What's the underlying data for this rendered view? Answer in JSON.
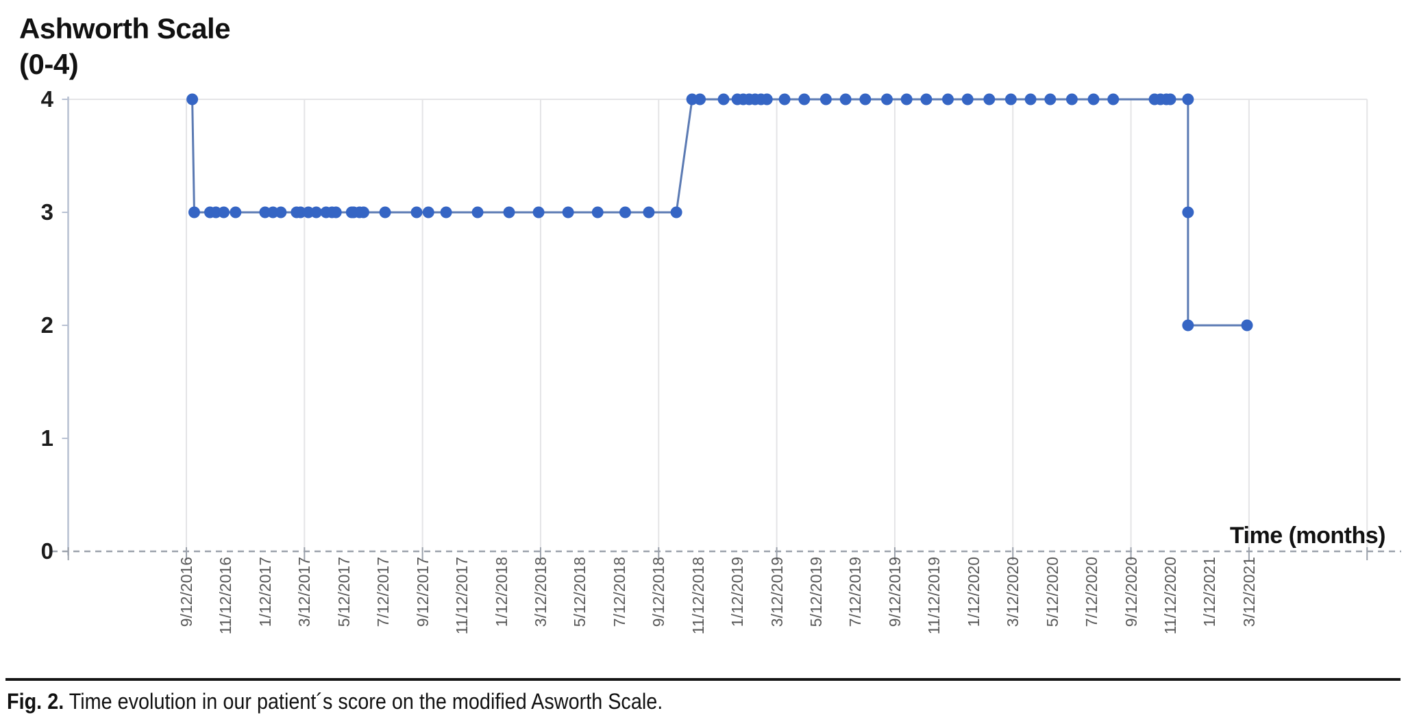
{
  "figure": {
    "y_axis_title_line1": "Ashworth Scale",
    "y_axis_title_line2": "(0-4)",
    "x_axis_title": "Time (months)",
    "caption_label": "Fig. 2.",
    "caption_text": " Time evolution in our patient´s score on the modified Asworth Scale."
  },
  "chart_data": {
    "type": "line",
    "title": "",
    "xlabel": "Time (months)",
    "ylabel": "Ashworth Scale (0-4)",
    "ylim": [
      0,
      4
    ],
    "y_tick_labels": [
      "4",
      "3",
      "2",
      "1",
      "0"
    ],
    "y_tick_values": [
      4,
      3,
      2,
      1,
      0
    ],
    "x_tick_labels": [
      "9/12/2016",
      "11/12/2016",
      "1/12/2017",
      "3/12/2017",
      "5/12/2017",
      "7/12/2017",
      "9/12/2017",
      "11/12/2017",
      "1/12/2018",
      "3/12/2018",
      "5/12/2018",
      "7/12/2018",
      "9/12/2018",
      "11/12/2018",
      "1/12/2019",
      "3/12/2019",
      "5/12/2019",
      "7/12/2019",
      "9/12/2019",
      "11/12/2019",
      "1/12/2020",
      "3/12/2020",
      "5/12/2020",
      "7/12/2020",
      "9/12/2020",
      "11/12/2020",
      "1/12/2021",
      "3/12/2021"
    ],
    "x_tick_step_months": 2,
    "x_unit_note": "t = months after 9/12/2016",
    "x_range_months": [
      -6,
      60
    ],
    "grid": "vertical-only",
    "grid_step_months": 6,
    "legend": "none",
    "series": [
      {
        "name": "Ashworth Scale score",
        "marker_color": "#3565c4",
        "line_color": "#5b7ab3",
        "points": [
          [
            0.3,
            4
          ],
          [
            0.4,
            3
          ],
          [
            1.2,
            3
          ],
          [
            1.5,
            3
          ],
          [
            1.9,
            3
          ],
          [
            2.5,
            3
          ],
          [
            4.0,
            3
          ],
          [
            4.4,
            3
          ],
          [
            4.8,
            3
          ],
          [
            5.6,
            3
          ],
          [
            5.8,
            3
          ],
          [
            6.2,
            3
          ],
          [
            6.6,
            3
          ],
          [
            7.1,
            3
          ],
          [
            7.4,
            3
          ],
          [
            7.6,
            3
          ],
          [
            8.4,
            3
          ],
          [
            8.5,
            3
          ],
          [
            8.8,
            3
          ],
          [
            9.0,
            3
          ],
          [
            10.1,
            3
          ],
          [
            11.7,
            3
          ],
          [
            12.3,
            3
          ],
          [
            13.2,
            3
          ],
          [
            14.8,
            3
          ],
          [
            16.4,
            3
          ],
          [
            17.9,
            3
          ],
          [
            19.4,
            3
          ],
          [
            20.9,
            3
          ],
          [
            22.3,
            3
          ],
          [
            23.5,
            3
          ],
          [
            24.9,
            3
          ],
          [
            25.7,
            4
          ],
          [
            26.1,
            4
          ],
          [
            27.3,
            4
          ],
          [
            28.0,
            4
          ],
          [
            28.3,
            4
          ],
          [
            28.6,
            4
          ],
          [
            28.9,
            4
          ],
          [
            29.2,
            4
          ],
          [
            29.5,
            4
          ],
          [
            30.4,
            4
          ],
          [
            31.4,
            4
          ],
          [
            32.5,
            4
          ],
          [
            33.5,
            4
          ],
          [
            34.5,
            4
          ],
          [
            35.6,
            4
          ],
          [
            36.6,
            4
          ],
          [
            37.6,
            4
          ],
          [
            38.7,
            4
          ],
          [
            39.7,
            4
          ],
          [
            40.8,
            4
          ],
          [
            41.9,
            4
          ],
          [
            42.9,
            4
          ],
          [
            43.9,
            4
          ],
          [
            45.0,
            4
          ],
          [
            46.1,
            4
          ],
          [
            47.1,
            4
          ],
          [
            49.2,
            4
          ],
          [
            49.5,
            4
          ],
          [
            49.8,
            4
          ],
          [
            50.0,
            4
          ],
          [
            50.9,
            4
          ],
          [
            50.9,
            3
          ],
          [
            50.9,
            2
          ],
          [
            53.9,
            2
          ]
        ]
      }
    ]
  },
  "colors": {
    "marker": "#3565c4",
    "line": "#5b7ab3",
    "gridline": "#e4e4e6",
    "y_axis_line": "#b7c0d2",
    "dashed_axis": "#9ba1ab",
    "x_tick_text": "#595959",
    "y_tick_text": "#1c1c1c",
    "title_text": "#111111",
    "background": "#ffffff"
  }
}
